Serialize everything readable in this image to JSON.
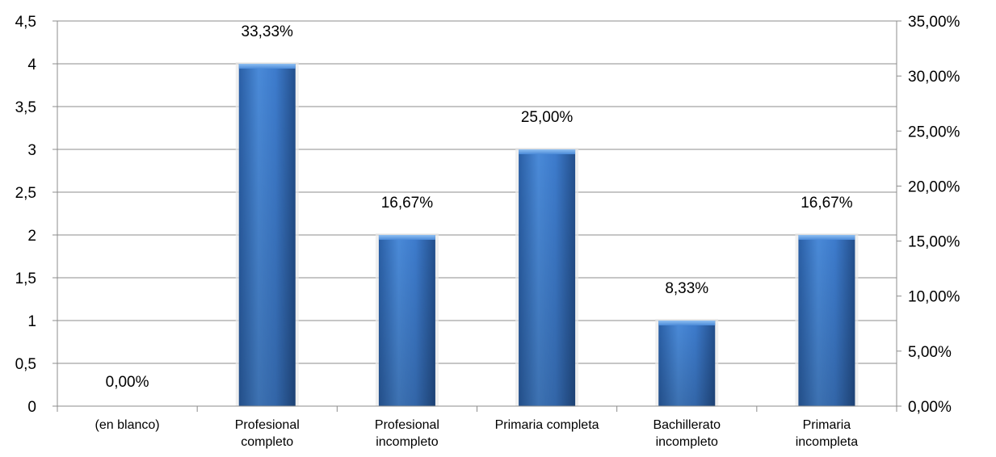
{
  "chart_data": {
    "type": "bar",
    "categories": [
      "(en blanco)",
      "Profesional completo",
      "Profesional incompleto",
      "Primaria completa",
      "Bachillerato incompleto",
      "Primaria incompleta"
    ],
    "category_lines": [
      [
        "(en blanco)"
      ],
      [
        "Profesional",
        "completo"
      ],
      [
        "Profesional",
        "incompleto"
      ],
      [
        "Primaria completa"
      ],
      [
        "Bachillerato",
        "incompleto"
      ],
      [
        "Primaria",
        "incompleta"
      ]
    ],
    "values": [
      0,
      4,
      2,
      3,
      1,
      2
    ],
    "data_labels": [
      "0,00%",
      "33,33%",
      "16,67%",
      "25,00%",
      "8,33%",
      "16,67%"
    ],
    "ylim": [
      0,
      4.5
    ],
    "y_ticks": [
      "0",
      "0,5",
      "1",
      "1,5",
      "2",
      "2,5",
      "3",
      "3,5",
      "4",
      "4,5"
    ],
    "y2lim": [
      0,
      35
    ],
    "y2_ticks": [
      "0,00%",
      "5,00%",
      "10,00%",
      "15,00%",
      "20,00%",
      "25,00%",
      "30,00%",
      "35,00%"
    ],
    "grid": true,
    "legend": "none",
    "colors": {
      "bar_light": "#5b9ae0",
      "bar_mid": "#3b78c8",
      "bar_dark": "#1f4f8f",
      "grid": "#8c8c8c"
    }
  }
}
